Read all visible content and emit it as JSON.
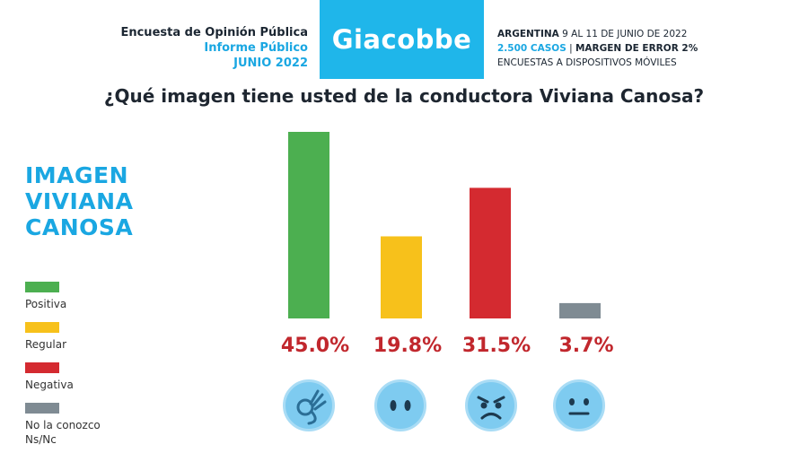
{
  "header": {
    "left_line1": "Encuesta de Opinión Pública",
    "left_line2": "Informe Público",
    "left_line3": "JUNIO 2022",
    "brand": "Giacobbe",
    "right_line1_bold": "ARGENTINA",
    "right_line1_rest": " 9 AL 11 DE JUNIO DE 2022",
    "right_line2_blue": "2.500 CASOS",
    "right_line2_sep": " | ",
    "right_line2_rest": "MARGEN DE ERROR 2%",
    "right_line3": "ENCUESTAS A DISPOSITIVOS MÓVILES"
  },
  "question": "¿Qué imagen tiene usted de la conductora Viviana Canosa?",
  "side_title": [
    "IMAGEN",
    "VIVIANA",
    "CANOSA"
  ],
  "legend": [
    {
      "label": "Positiva",
      "color": "#4caf50"
    },
    {
      "label": "Regular",
      "color": "#f7c11b"
    },
    {
      "label": "Negativa",
      "color": "#d42a30"
    },
    {
      "label": "No la conozco\nNs/Nc",
      "color": "#7f8b93"
    }
  ],
  "chart_data": {
    "type": "bar",
    "categories": [
      "Positiva",
      "Regular",
      "Negativa",
      "No la conozco Ns/Nc"
    ],
    "values": [
      45.0,
      19.8,
      31.5,
      3.7
    ],
    "value_labels": [
      "45.0%",
      "19.8%",
      "31.5%",
      "3.7%"
    ],
    "colors": [
      "#4caf50",
      "#f7c11b",
      "#d42a30",
      "#7f8b93"
    ],
    "label_color": "#c1272d",
    "title": "¿Qué imagen tiene usted de la conductora Viviana Canosa?",
    "ylim": [
      0,
      45
    ],
    "grid": false,
    "legend_position": "left"
  },
  "icons": [
    "ok-hand-icon",
    "neutral-face-icon",
    "angry-face-icon",
    "expressionless-face-icon"
  ]
}
